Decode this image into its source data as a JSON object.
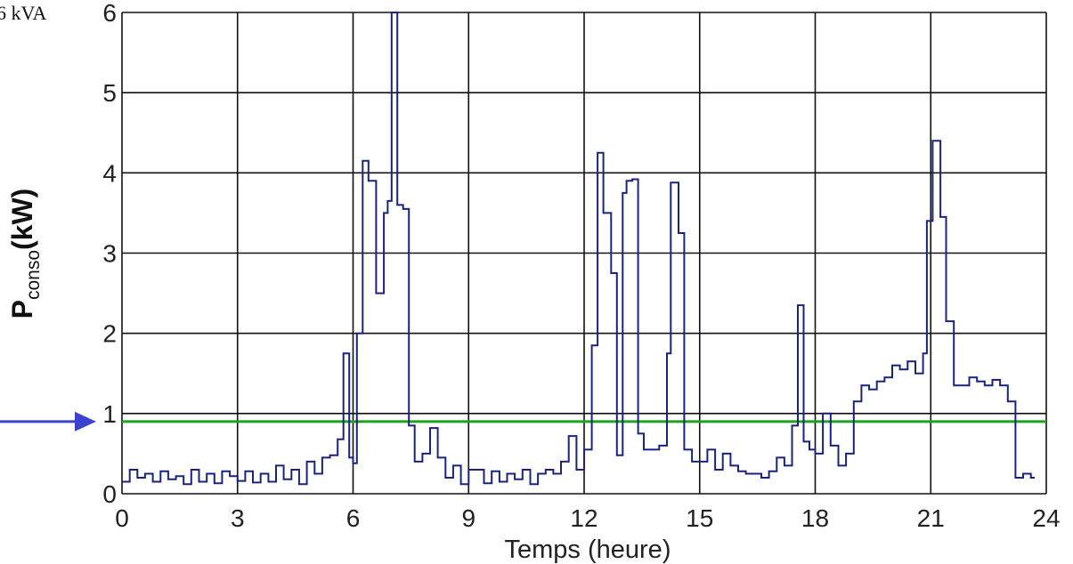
{
  "chart_data": {
    "type": "line",
    "title": "",
    "xlabel": "Temps (heure)",
    "ylabel": {
      "main": "P",
      "sub": "conso",
      "unit": "(kW)"
    },
    "xlim": [
      0,
      24
    ],
    "ylim": [
      0,
      6
    ],
    "xticks": [
      0,
      3,
      6,
      9,
      12,
      15,
      18,
      21,
      24
    ],
    "yticks": [
      0,
      1,
      2,
      3,
      4,
      5,
      6
    ],
    "grid": true,
    "top_annotation": "6 kVA",
    "threshold": {
      "value": 0.9,
      "color": "#22a022"
    },
    "arrow_color": "#3a43d0",
    "line_color": "#1a237e",
    "series": [
      {
        "step": true,
        "x": [
          0,
          0.2,
          0.4,
          0.6,
          0.8,
          1.0,
          1.2,
          1.4,
          1.6,
          1.8,
          2.0,
          2.2,
          2.4,
          2.6,
          2.8,
          3.0,
          3.2,
          3.4,
          3.6,
          3.8,
          4.0,
          4.2,
          4.4,
          4.6,
          4.8,
          5.0,
          5.2,
          5.4,
          5.6,
          5.75,
          5.9,
          6.0,
          6.1,
          6.25,
          6.4,
          6.6,
          6.8,
          6.9,
          7.0,
          7.15,
          7.3,
          7.45,
          7.6,
          7.8,
          8.0,
          8.2,
          8.4,
          8.6,
          8.8,
          9.0,
          9.2,
          9.4,
          9.6,
          9.8,
          10.0,
          10.2,
          10.4,
          10.6,
          10.8,
          11.0,
          11.2,
          11.4,
          11.6,
          11.8,
          12.0,
          12.2,
          12.35,
          12.5,
          12.7,
          12.85,
          13.0,
          13.1,
          13.25,
          13.4,
          13.55,
          13.75,
          13.95,
          14.15,
          14.25,
          14.45,
          14.6,
          14.8,
          15.0,
          15.2,
          15.4,
          15.6,
          15.8,
          16.0,
          16.2,
          16.4,
          16.6,
          16.8,
          17.0,
          17.2,
          17.4,
          17.55,
          17.7,
          17.85,
          18.0,
          18.2,
          18.4,
          18.6,
          18.8,
          19.0,
          19.2,
          19.4,
          19.6,
          19.8,
          20.0,
          20.2,
          20.4,
          20.6,
          20.8,
          20.9,
          21.05,
          21.25,
          21.4,
          21.6,
          21.8,
          22.0,
          22.2,
          22.4,
          22.6,
          22.8,
          23.0,
          23.2,
          23.4,
          23.6
        ],
        "y": [
          0.15,
          0.3,
          0.2,
          0.25,
          0.15,
          0.28,
          0.18,
          0.22,
          0.12,
          0.3,
          0.15,
          0.25,
          0.13,
          0.28,
          0.22,
          0.16,
          0.28,
          0.14,
          0.25,
          0.15,
          0.35,
          0.18,
          0.3,
          0.12,
          0.4,
          0.25,
          0.45,
          0.48,
          0.68,
          1.75,
          0.45,
          0.38,
          2.0,
          4.15,
          3.9,
          2.5,
          3.5,
          3.65,
          6.0,
          3.6,
          3.55,
          0.85,
          0.4,
          0.5,
          0.82,
          0.45,
          0.2,
          0.35,
          0.12,
          0.3,
          0.3,
          0.13,
          0.28,
          0.15,
          0.25,
          0.18,
          0.3,
          0.12,
          0.25,
          0.3,
          0.25,
          0.4,
          0.72,
          0.3,
          0.55,
          1.85,
          4.25,
          3.5,
          2.75,
          0.48,
          3.75,
          3.9,
          3.92,
          0.75,
          0.55,
          0.55,
          0.6,
          1.75,
          3.88,
          3.25,
          0.55,
          0.4,
          0.4,
          0.55,
          0.3,
          0.5,
          0.35,
          0.28,
          0.25,
          0.25,
          0.2,
          0.28,
          0.45,
          0.35,
          0.85,
          2.35,
          0.65,
          0.55,
          0.5,
          1.0,
          0.6,
          0.35,
          0.5,
          1.15,
          1.35,
          1.3,
          1.4,
          1.45,
          1.6,
          1.55,
          1.65,
          1.5,
          1.75,
          3.4,
          4.4,
          3.45,
          2.15,
          1.35,
          1.35,
          1.45,
          1.4,
          1.35,
          1.42,
          1.35,
          1.15,
          0.2,
          0.25,
          0.2
        ]
      }
    ]
  }
}
